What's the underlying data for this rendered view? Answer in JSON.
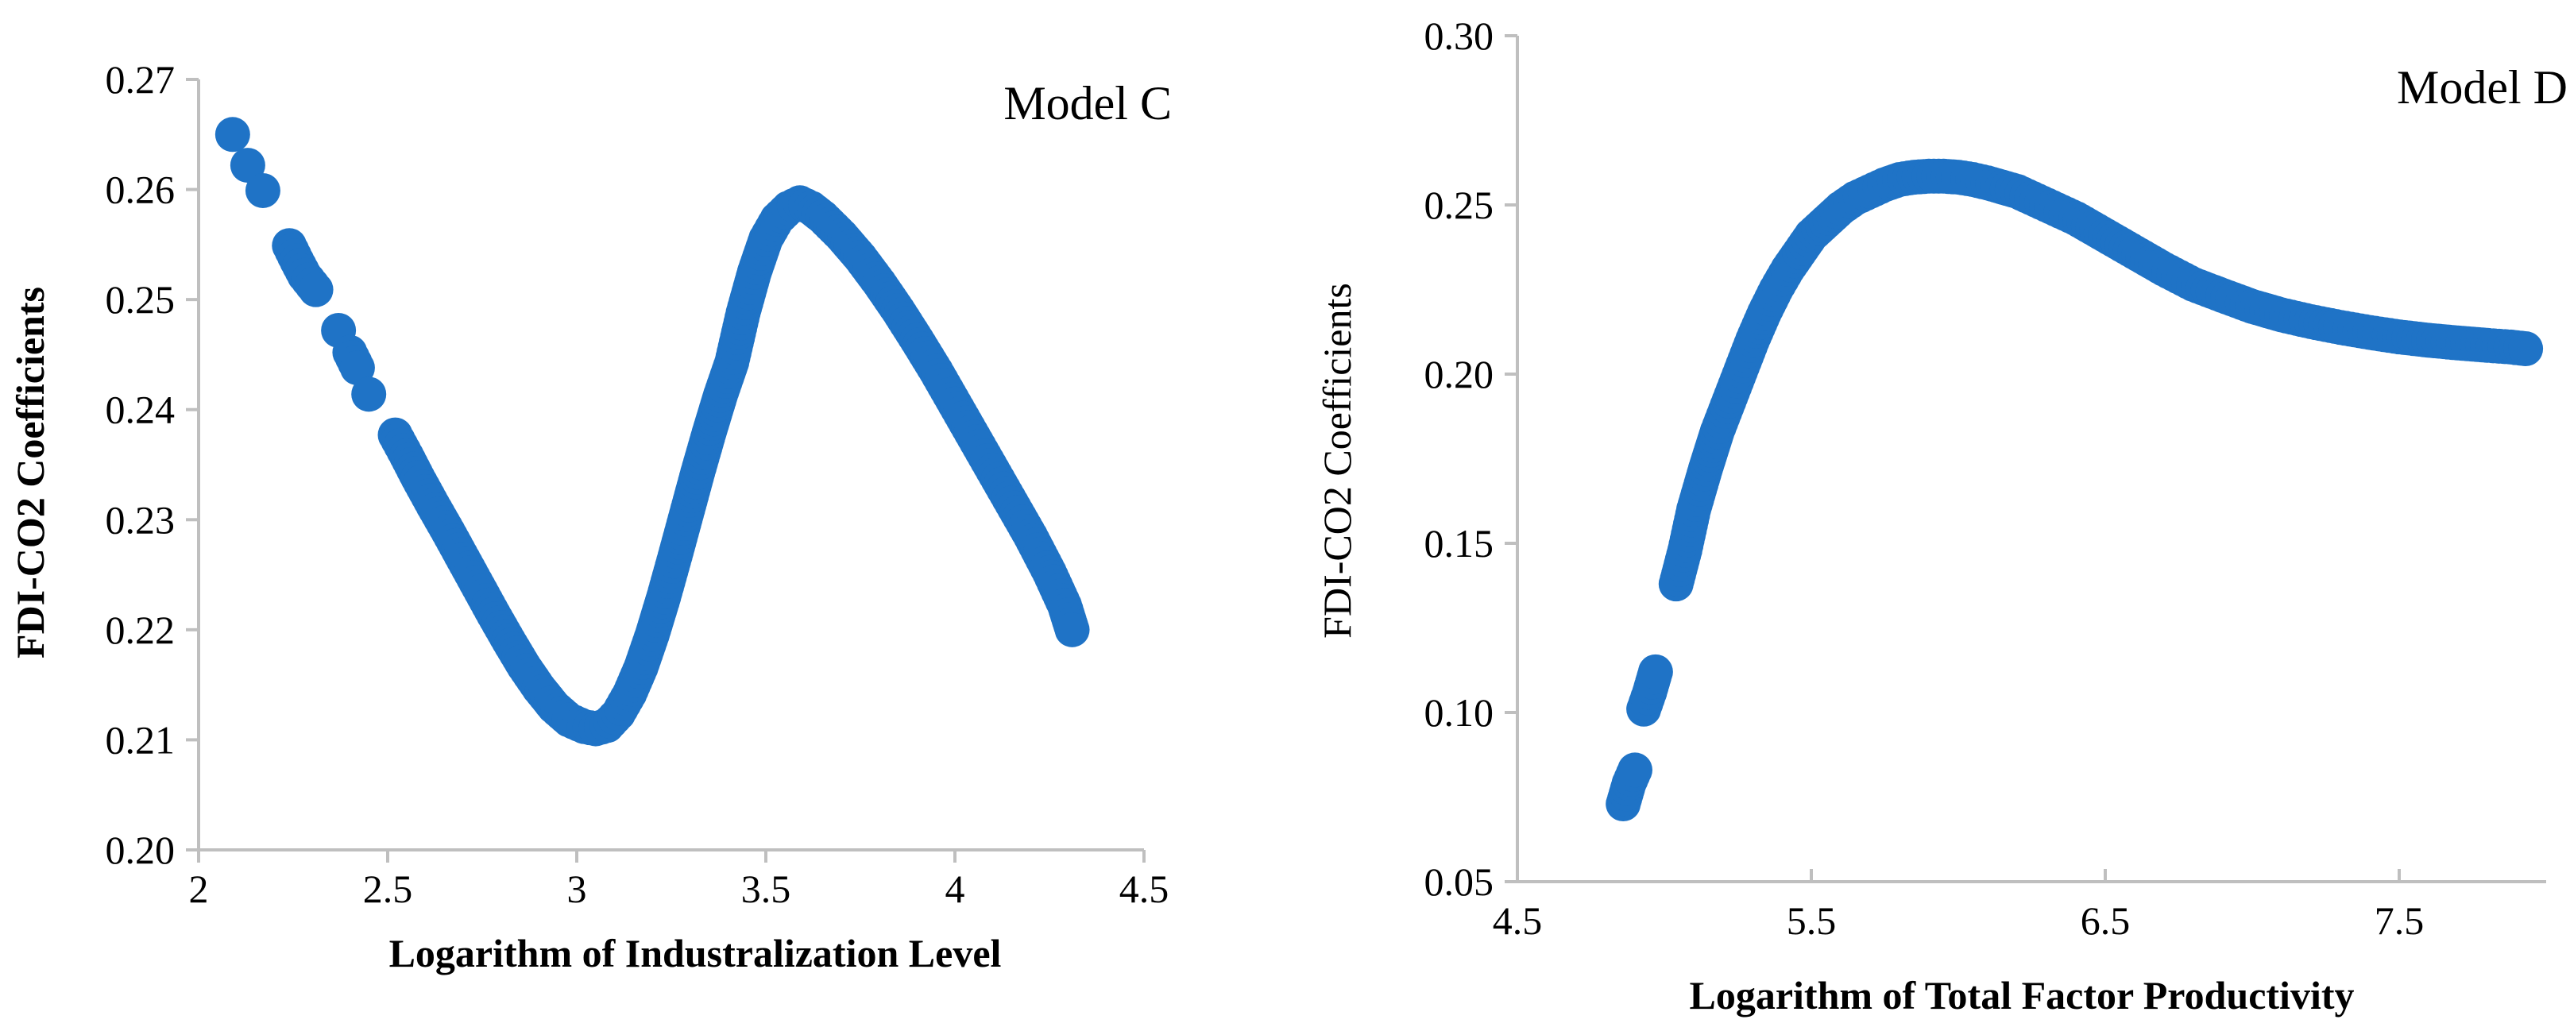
{
  "colors": {
    "marker": "#1f73c6",
    "axis": "#bfbfbf"
  },
  "chart_data": [
    {
      "type": "scatter",
      "label": "Model C",
      "xlabel": "Logarithm of Industralization Level",
      "ylabel": "FDI-CO2 Coefficients",
      "xlim": [
        2,
        4.5
      ],
      "ylim": [
        0.2,
        0.27
      ],
      "xticks": [
        "2",
        "2.5",
        "3",
        "3.5",
        "4",
        "4.5"
      ],
      "xtick_values": [
        2,
        2.5,
        3,
        3.5,
        4,
        4.5
      ],
      "yticks": [
        "0.20",
        "0.21",
        "0.22",
        "0.23",
        "0.24",
        "0.25",
        "0.26",
        "0.27"
      ],
      "ytick_values": [
        0.2,
        0.21,
        0.22,
        0.23,
        0.24,
        0.25,
        0.26,
        0.27
      ],
      "x": [
        2.09,
        2.13,
        2.17,
        2.24,
        2.26,
        2.28,
        2.31,
        2.37,
        2.4,
        2.42,
        2.45,
        2.52,
        2.55,
        2.58,
        2.62,
        2.66,
        2.7,
        2.74,
        2.78,
        2.82,
        2.86,
        2.9,
        2.94,
        2.98,
        3.02,
        3.05,
        3.08,
        3.11,
        3.14,
        3.17,
        3.2,
        3.23,
        3.26,
        3.29,
        3.32,
        3.35,
        3.38,
        3.41,
        3.44,
        3.47,
        3.5,
        3.53,
        3.56,
        3.59,
        3.62,
        3.65,
        3.7,
        3.75,
        3.8,
        3.85,
        3.9,
        3.95,
        4.0,
        4.05,
        4.1,
        4.15,
        4.2,
        4.25,
        4.29,
        4.31
      ],
      "y": [
        0.265,
        0.2622,
        0.2599,
        0.2549,
        0.2535,
        0.2522,
        0.2509,
        0.2472,
        0.2452,
        0.2438,
        0.2414,
        0.2377,
        0.2358,
        0.2338,
        0.2313,
        0.2289,
        0.2264,
        0.2239,
        0.2214,
        0.219,
        0.2167,
        0.2147,
        0.213,
        0.2118,
        0.2112,
        0.211,
        0.2113,
        0.2124,
        0.2142,
        0.2166,
        0.2196,
        0.223,
        0.2267,
        0.2305,
        0.2343,
        0.2379,
        0.2413,
        0.2443,
        0.2488,
        0.2525,
        0.2555,
        0.2573,
        0.2583,
        0.2588,
        0.2583,
        0.2575,
        0.2558,
        0.2538,
        0.2515,
        0.249,
        0.2463,
        0.2435,
        0.2405,
        0.2375,
        0.2345,
        0.2315,
        0.2285,
        0.2252,
        0.2222,
        0.22
      ]
    },
    {
      "type": "scatter",
      "label": "Model D",
      "xlabel": "Logarithm of Total Factor Productivity",
      "ylabel": "FDI-CO2 Coefficients",
      "xlim": [
        4.5,
        8.0
      ],
      "ylim": [
        0.05,
        0.3
      ],
      "xticks": [
        "4.5",
        "5.5",
        "6.5",
        "7.5"
      ],
      "xtick_values": [
        4.5,
        5.5,
        6.5,
        7.5
      ],
      "yticks": [
        "0.05",
        "0.10",
        "0.15",
        "0.20",
        "0.25",
        "0.30"
      ],
      "ytick_values": [
        0.05,
        0.1,
        0.15,
        0.2,
        0.25,
        0.3
      ],
      "x": [
        4.86,
        4.88,
        4.9,
        4.93,
        4.95,
        4.97,
        5.04,
        5.07,
        5.1,
        5.14,
        5.18,
        5.22,
        5.26,
        5.3,
        5.34,
        5.38,
        5.42,
        5.46,
        5.5,
        5.55,
        5.6,
        5.65,
        5.7,
        5.75,
        5.8,
        5.85,
        5.9,
        5.95,
        6.0,
        6.05,
        6.1,
        6.2,
        6.3,
        6.4,
        6.5,
        6.6,
        6.7,
        6.8,
        6.9,
        7.0,
        7.1,
        7.2,
        7.3,
        7.4,
        7.5,
        7.6,
        7.7,
        7.8,
        7.88,
        7.93
      ],
      "y": [
        0.073,
        0.079,
        0.083,
        0.101,
        0.106,
        0.112,
        0.138,
        0.148,
        0.16,
        0.172,
        0.183,
        0.192,
        0.201,
        0.21,
        0.218,
        0.225,
        0.231,
        0.236,
        0.241,
        0.245,
        0.249,
        0.252,
        0.254,
        0.256,
        0.2575,
        0.2582,
        0.2585,
        0.2585,
        0.2582,
        0.2575,
        0.2565,
        0.254,
        0.25,
        0.246,
        0.241,
        0.236,
        0.231,
        0.2265,
        0.2232,
        0.22,
        0.2175,
        0.2155,
        0.2138,
        0.2123,
        0.211,
        0.21,
        0.2092,
        0.2085,
        0.208,
        0.2075
      ]
    }
  ]
}
